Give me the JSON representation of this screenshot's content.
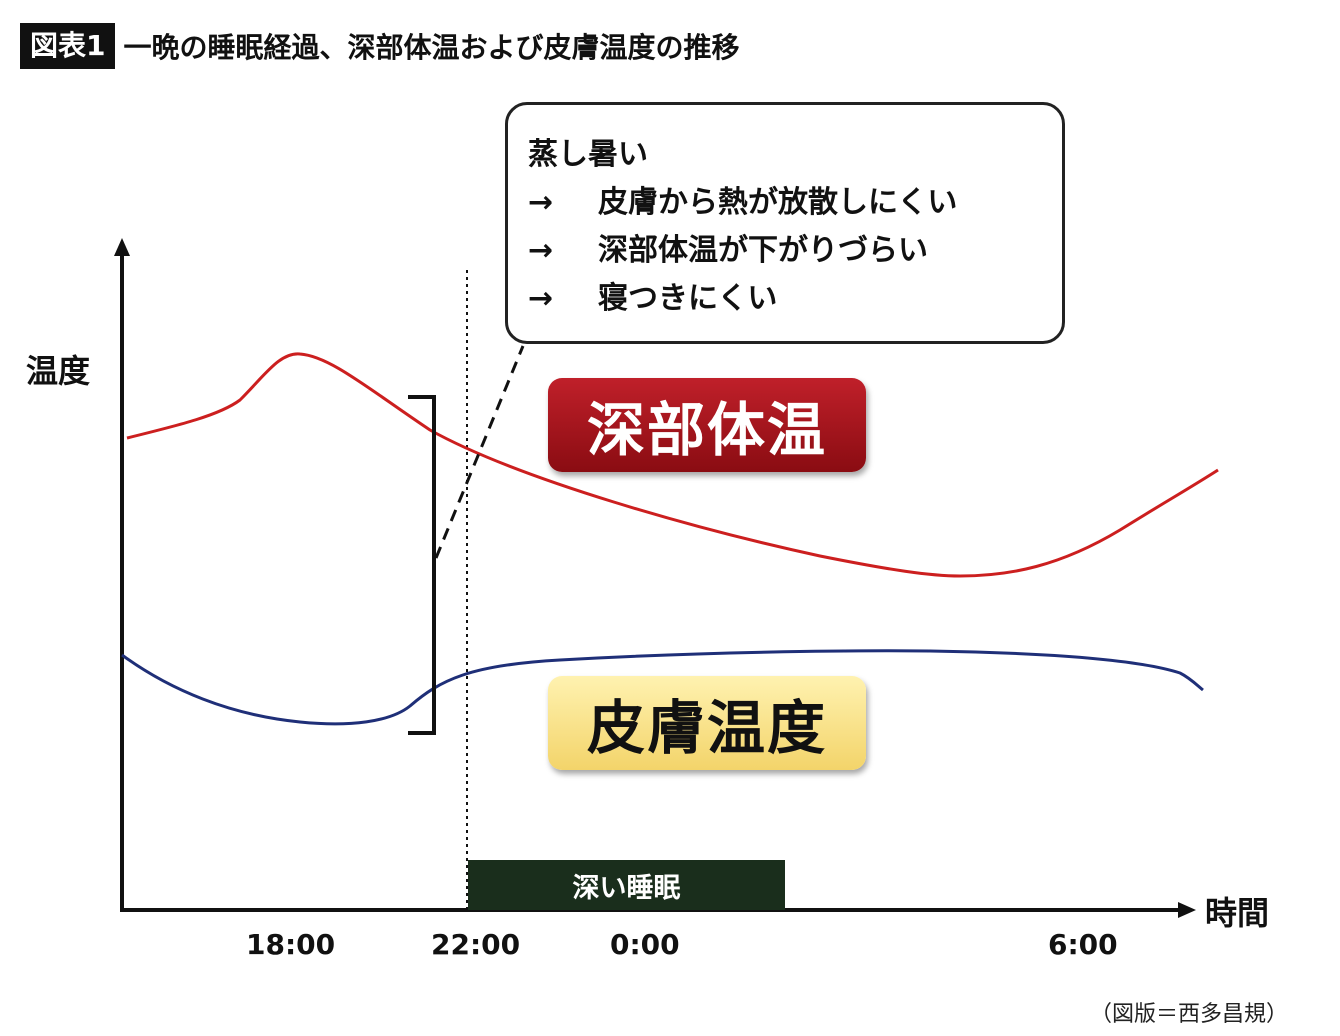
{
  "header": {
    "tag": "図表1",
    "title": "一晩の睡眠経過、深部体温および皮膚温度の推移"
  },
  "callout": {
    "line1": "蒸し暑い",
    "arrow": "→",
    "line2": "皮膚から熱が放散しにくい",
    "line3": "深部体温が下がりづらい",
    "line4": "寝つきにくい"
  },
  "labels": {
    "core_temp": "深部体温",
    "skin_temp": "皮膚温度",
    "y_axis": "温度",
    "x_axis": "時間",
    "deep_sleep": "深い睡眠"
  },
  "x_ticks": [
    "18:00",
    "22:00",
    "0:00",
    "6:00"
  ],
  "colors": {
    "core_line": "#cc1f1f",
    "skin_line": "#1f2f78",
    "core_pill": "#a3161c",
    "skin_pill": "#f6dc7c",
    "deep_sleep_bar": "#1a2e1c"
  },
  "credit": "（図版＝西多昌規）"
}
